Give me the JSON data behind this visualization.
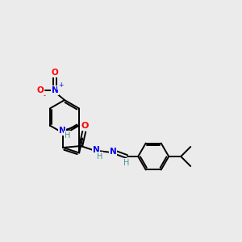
{
  "bg_color": "#ebebeb",
  "bond_color": "#000000",
  "atom_colors": {
    "N": "#0000ee",
    "O": "#ff0000",
    "H": "#4a9090"
  },
  "figsize": [
    3.0,
    3.0
  ],
  "dpi": 100,
  "lw": 1.4
}
